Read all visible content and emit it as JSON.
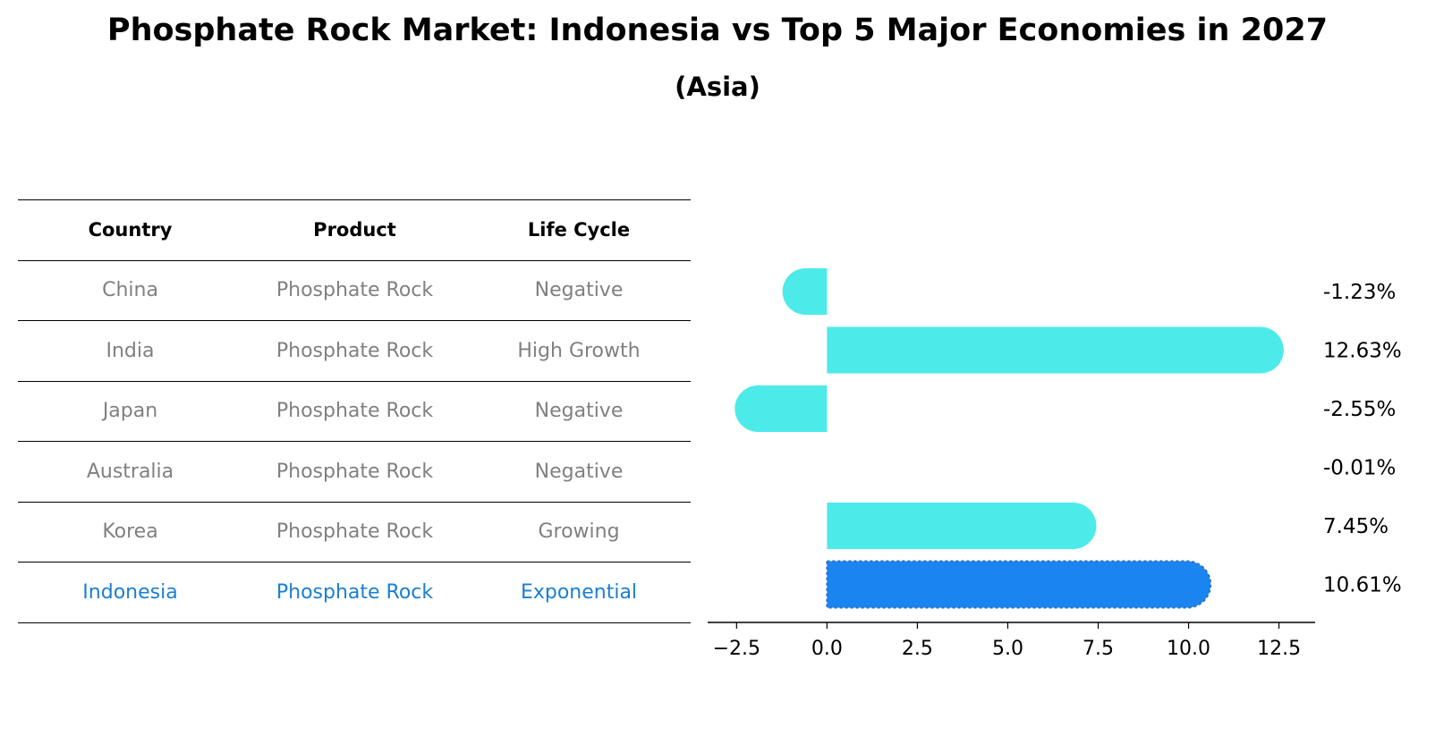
{
  "title": "Phosphate Rock Market: Indonesia vs Top 5 Major Economies in 2027",
  "subtitle": "(Asia)",
  "table": {
    "headers": [
      "Country",
      "Product",
      "Life Cycle"
    ],
    "rows": [
      [
        "China",
        "Phosphate Rock",
        "Negative"
      ],
      [
        "India",
        "Phosphate Rock",
        "High Growth"
      ],
      [
        "Japan",
        "Phosphate Rock",
        "Negative"
      ],
      [
        "Australia",
        "Phosphate Rock",
        "Negative"
      ],
      [
        "Korea",
        "Phosphate Rock",
        "Growing"
      ],
      [
        "Indonesia",
        "Phosphate Rock",
        "Exponential"
      ]
    ],
    "highlight_row": 5,
    "highlight_color": "#1a7fd0",
    "text_color": "#808080"
  },
  "chart_data": {
    "type": "bar",
    "orientation": "horizontal",
    "categories": [
      "China",
      "India",
      "Japan",
      "Australia",
      "Korea",
      "Indonesia"
    ],
    "values": [
      -1.23,
      12.63,
      -2.55,
      -0.01,
      7.45,
      10.61
    ],
    "value_labels": [
      "-1.23%",
      "12.63%",
      "-2.55%",
      "-0.01%",
      "7.45%",
      "10.61%"
    ],
    "colors": [
      "#4deaea",
      "#4deaea",
      "#4deaea",
      "#4deaea",
      "#4deaea",
      "#1a85f0"
    ],
    "highlight_index": 5,
    "xlim": [
      -3.3,
      13.5
    ],
    "xticks": [
      -2.5,
      0.0,
      2.5,
      5.0,
      7.5,
      10.0,
      12.5
    ],
    "xtick_labels": [
      "−2.5",
      "0.0",
      "2.5",
      "5.0",
      "7.5",
      "10.0",
      "12.5"
    ],
    "grid": false
  }
}
